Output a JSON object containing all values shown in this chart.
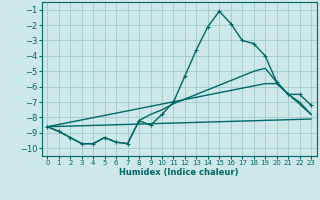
{
  "background_color": "#cce8e8",
  "grid_color": "#a8cccc",
  "line_color": "#006868",
  "xlabel": "Humidex (Indice chaleur)",
  "ylim": [
    -10.5,
    -0.5
  ],
  "xlim": [
    -0.5,
    23.5
  ],
  "x_ticks": [
    0,
    1,
    2,
    3,
    4,
    5,
    6,
    7,
    8,
    9,
    10,
    11,
    12,
    13,
    14,
    15,
    16,
    17,
    18,
    19,
    20,
    21,
    22,
    23
  ],
  "y_ticks": [
    -10,
    -9,
    -8,
    -7,
    -6,
    -5,
    -4,
    -3,
    -2,
    -1
  ],
  "curve1_x": [
    0,
    1,
    2,
    3,
    4,
    5,
    6,
    7,
    8,
    9,
    10,
    11,
    12,
    13,
    14,
    15,
    16,
    17,
    18,
    19,
    20,
    21,
    22,
    23
  ],
  "curve1_y": [
    -8.6,
    -8.9,
    -9.3,
    -9.7,
    -9.7,
    -9.3,
    -9.6,
    -9.7,
    -8.2,
    -8.5,
    -7.8,
    -7.0,
    -5.3,
    -3.6,
    -2.1,
    -1.1,
    -1.9,
    -3.0,
    -3.2,
    -4.0,
    -5.7,
    -6.5,
    -6.5,
    -7.2
  ],
  "curve2_x": [
    0,
    1,
    2,
    3,
    4,
    5,
    6,
    7,
    8,
    9,
    10,
    11,
    12,
    13,
    14,
    15,
    16,
    17,
    18,
    19,
    20,
    21,
    22,
    23
  ],
  "curve2_y": [
    -8.6,
    -8.9,
    -9.3,
    -9.7,
    -9.7,
    -9.3,
    -9.6,
    -9.7,
    -8.2,
    -7.8,
    -7.5,
    -7.1,
    -6.8,
    -6.5,
    -6.2,
    -5.9,
    -5.6,
    -5.3,
    -5.0,
    -4.8,
    -5.7,
    -6.5,
    -7.0,
    -7.8
  ],
  "line3_x": [
    0,
    19,
    20,
    23
  ],
  "line3_y": [
    -8.6,
    -5.8,
    -5.8,
    -7.8
  ],
  "line4_x": [
    0,
    23
  ],
  "line4_y": [
    -8.6,
    -8.1
  ]
}
